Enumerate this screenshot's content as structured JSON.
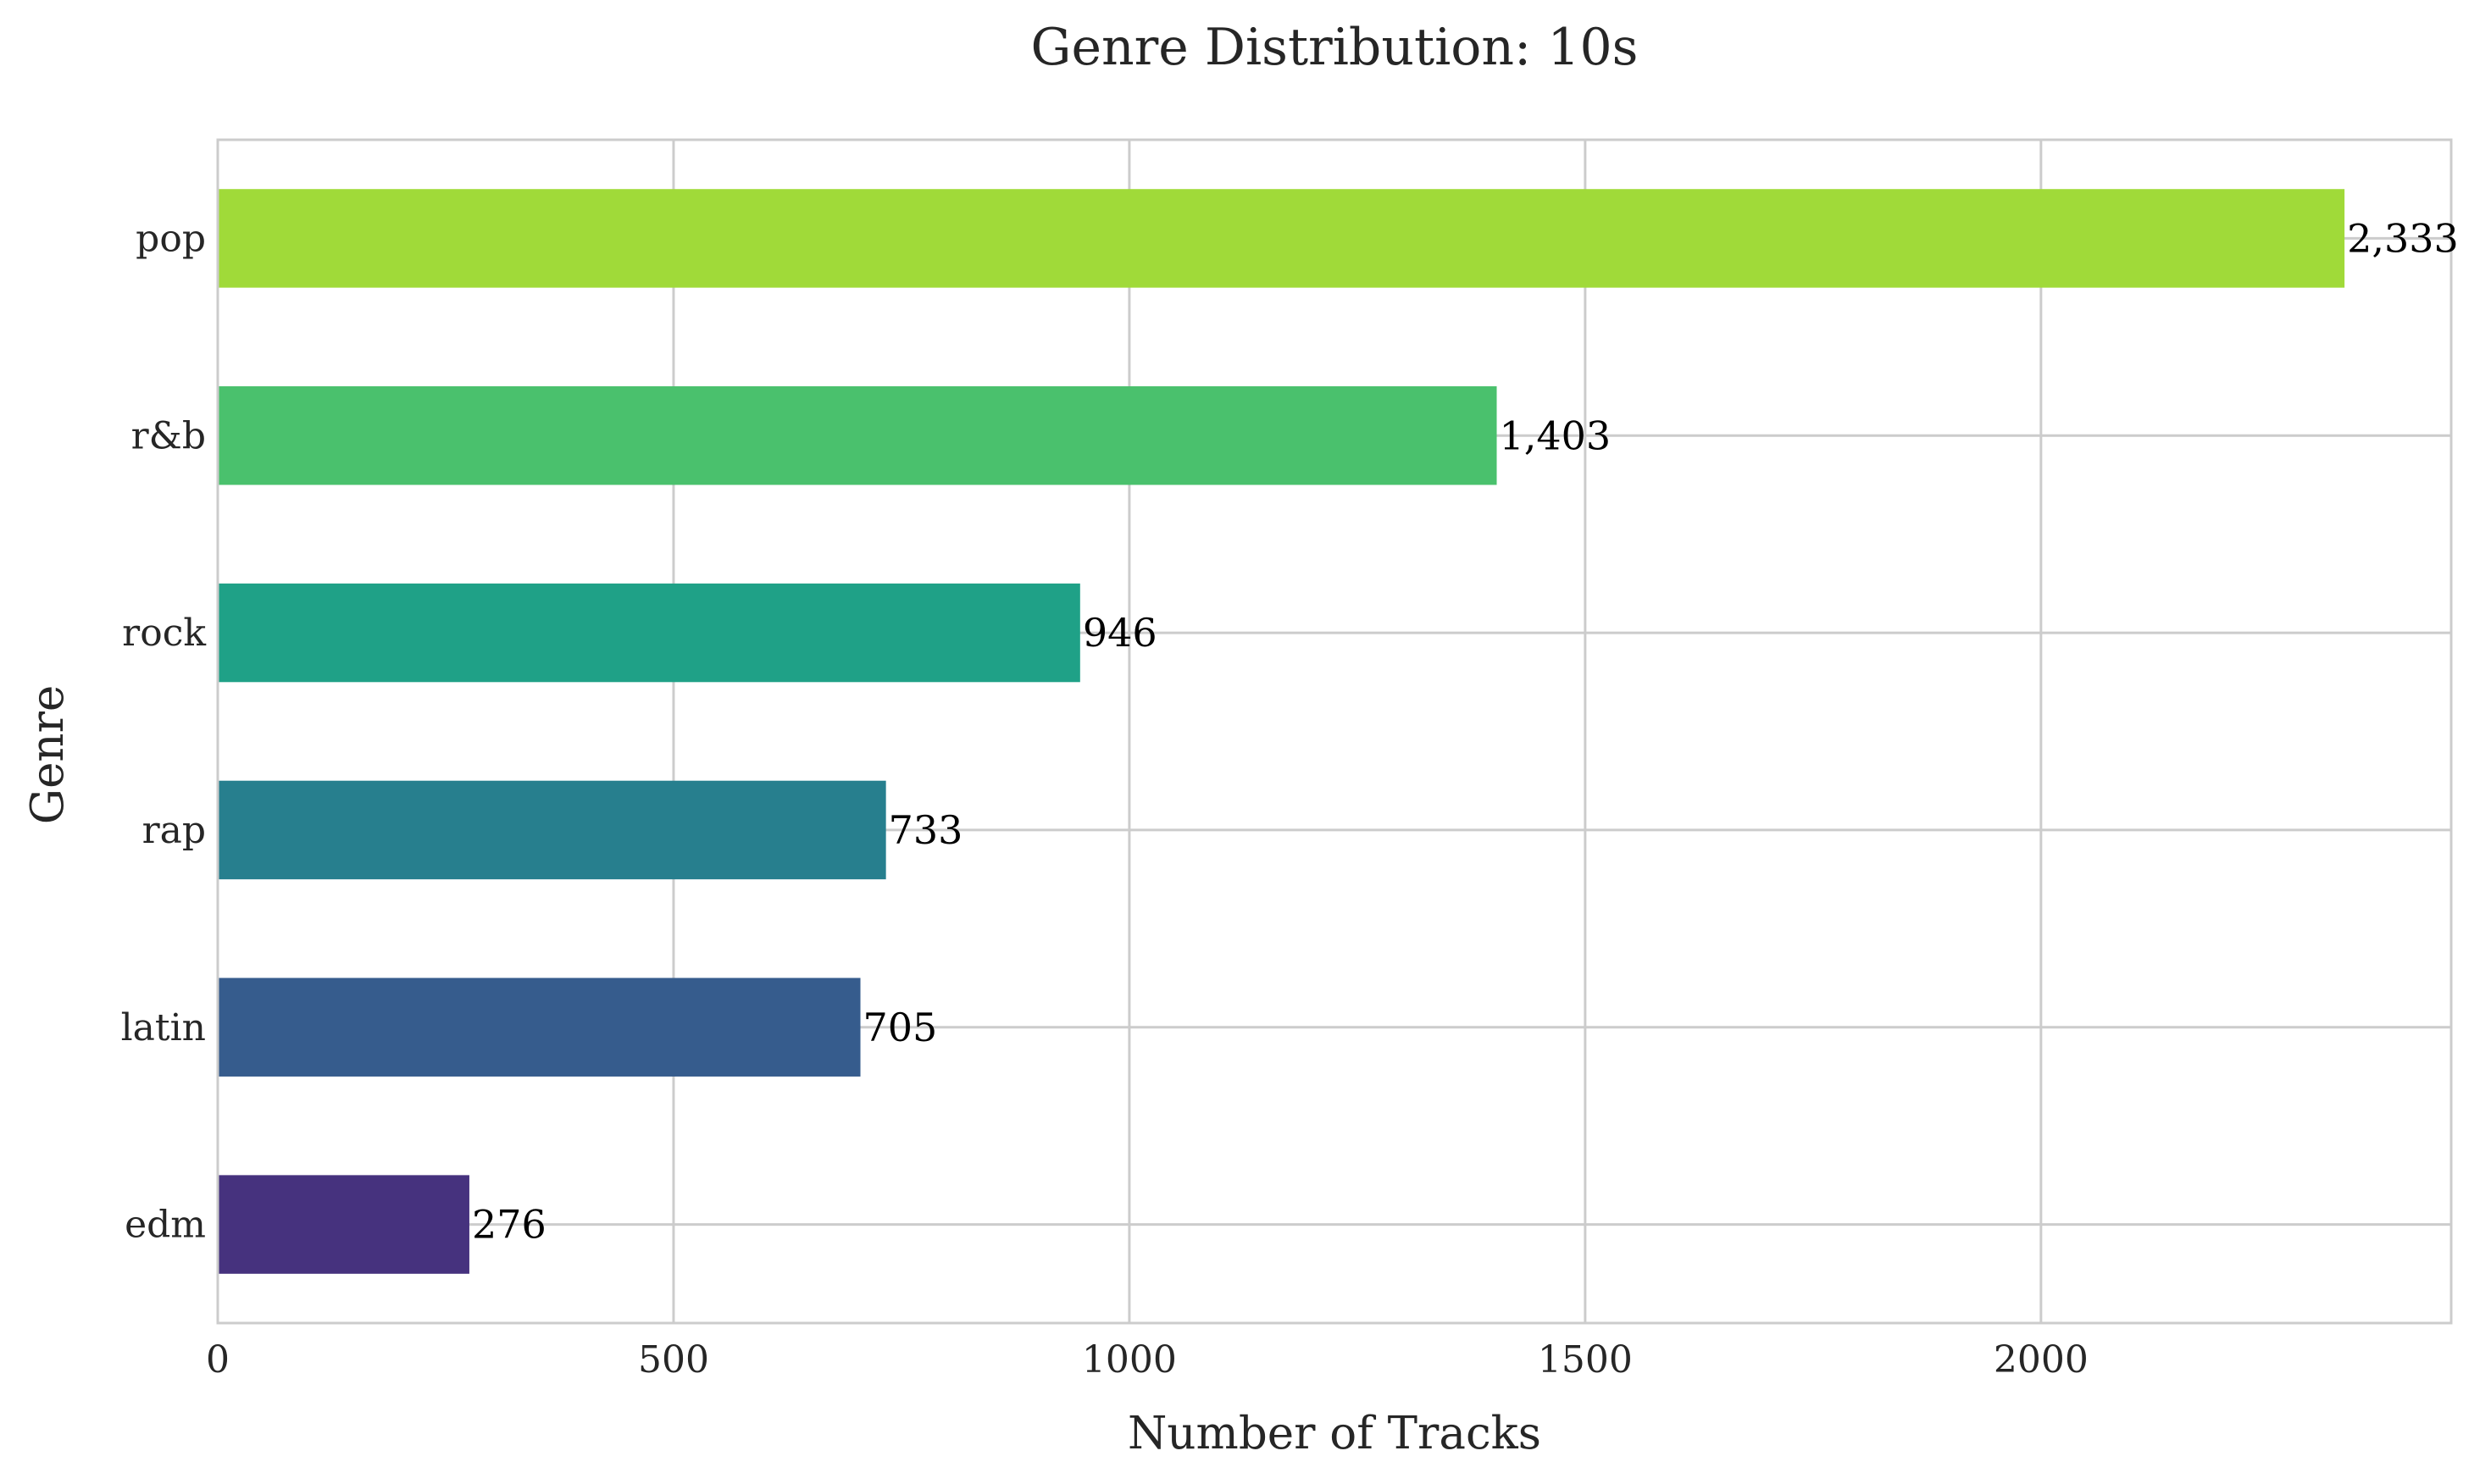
{
  "chart_data": {
    "type": "bar",
    "orientation": "horizontal",
    "title": "Genre Distribution: 10s",
    "xlabel": "Number of Tracks",
    "ylabel": "Genre",
    "xlim": [
      0,
      2450
    ],
    "xticks": [
      0,
      500,
      1000,
      1500,
      2000
    ],
    "xtick_labels": [
      "0",
      "500",
      "1000",
      "1500",
      "2000"
    ],
    "grid": true,
    "categories": [
      "pop",
      "r&b",
      "rock",
      "rap",
      "latin",
      "edm"
    ],
    "values": [
      2333,
      1403,
      946,
      733,
      705,
      276
    ],
    "value_labels": [
      "2,333",
      "1,403",
      "946",
      "733",
      "705",
      "276"
    ],
    "colors": [
      "#a0da39",
      "#4ac16d",
      "#1fa187",
      "#277f8e",
      "#365c8d",
      "#46327e"
    ]
  }
}
